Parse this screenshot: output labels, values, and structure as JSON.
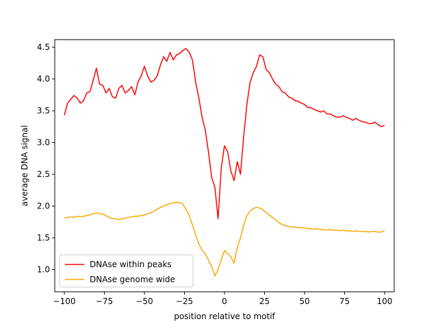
{
  "chart_data": {
    "type": "line",
    "title": "",
    "xlabel": "position relative to motif",
    "ylabel": "average DNA signal",
    "xlim": [
      -106,
      106
    ],
    "ylim": [
      0.65,
      4.62
    ],
    "xticks": [
      -100,
      -75,
      -50,
      -25,
      0,
      25,
      50,
      75,
      100
    ],
    "yticks": [
      1.0,
      1.5,
      2.0,
      2.5,
      3.0,
      3.5,
      4.0,
      4.5
    ],
    "grid": false,
    "legend_position": "lower-left",
    "series": [
      {
        "name": "DNAse within peaks",
        "color": "#ff0000",
        "x": [
          -100,
          -98,
          -96,
          -94,
          -92,
          -90,
          -88,
          -86,
          -84,
          -82,
          -80,
          -78,
          -76,
          -74,
          -72,
          -70,
          -68,
          -66,
          -64,
          -62,
          -60,
          -58,
          -56,
          -54,
          -52,
          -50,
          -48,
          -46,
          -44,
          -42,
          -40,
          -38,
          -36,
          -34,
          -32,
          -30,
          -28,
          -26,
          -24,
          -22,
          -20,
          -18,
          -16,
          -14,
          -12,
          -10,
          -8,
          -6,
          -4,
          -2,
          0,
          2,
          4,
          6,
          8,
          10,
          12,
          14,
          16,
          18,
          20,
          22,
          24,
          26,
          28,
          30,
          32,
          34,
          36,
          38,
          40,
          42,
          44,
          46,
          48,
          50,
          52,
          54,
          56,
          58,
          60,
          62,
          64,
          66,
          68,
          70,
          72,
          74,
          76,
          78,
          80,
          82,
          84,
          86,
          88,
          90,
          92,
          94,
          96,
          98,
          100
        ],
        "values": [
          3.43,
          3.62,
          3.68,
          3.74,
          3.7,
          3.62,
          3.66,
          3.78,
          3.8,
          3.98,
          4.17,
          3.92,
          3.9,
          3.78,
          3.85,
          3.72,
          3.7,
          3.85,
          3.9,
          3.78,
          3.82,
          3.88,
          3.75,
          3.95,
          4.05,
          4.2,
          4.05,
          3.95,
          3.98,
          4.05,
          4.22,
          4.35,
          4.28,
          4.42,
          4.3,
          4.38,
          4.4,
          4.45,
          4.48,
          4.42,
          4.3,
          3.95,
          3.7,
          3.4,
          3.2,
          2.85,
          2.45,
          2.3,
          1.8,
          2.6,
          2.95,
          2.85,
          2.55,
          2.4,
          2.7,
          2.5,
          3.1,
          3.6,
          3.95,
          4.1,
          4.2,
          4.38,
          4.35,
          4.15,
          4.1,
          4.0,
          3.92,
          3.88,
          3.8,
          3.78,
          3.72,
          3.7,
          3.66,
          3.65,
          3.62,
          3.6,
          3.55,
          3.55,
          3.52,
          3.5,
          3.48,
          3.5,
          3.45,
          3.45,
          3.42,
          3.4,
          3.4,
          3.42,
          3.4,
          3.38,
          3.35,
          3.38,
          3.35,
          3.33,
          3.32,
          3.3,
          3.3,
          3.32,
          3.28,
          3.25,
          3.27
        ]
      },
      {
        "name": "DNAse genome wide",
        "color": "#ffa500",
        "x": [
          -100,
          -98,
          -96,
          -94,
          -92,
          -90,
          -88,
          -86,
          -84,
          -82,
          -80,
          -78,
          -76,
          -74,
          -72,
          -70,
          -68,
          -66,
          -64,
          -62,
          -60,
          -58,
          -56,
          -54,
          -52,
          -50,
          -48,
          -46,
          -44,
          -42,
          -40,
          -38,
          -36,
          -34,
          -32,
          -30,
          -28,
          -26,
          -24,
          -22,
          -20,
          -18,
          -16,
          -14,
          -12,
          -10,
          -8,
          -6,
          -4,
          -2,
          0,
          2,
          4,
          6,
          8,
          10,
          12,
          14,
          16,
          18,
          20,
          22,
          24,
          26,
          28,
          30,
          32,
          34,
          36,
          38,
          40,
          42,
          44,
          46,
          48,
          50,
          52,
          54,
          56,
          58,
          60,
          62,
          64,
          66,
          68,
          70,
          72,
          74,
          76,
          78,
          80,
          82,
          84,
          86,
          88,
          90,
          92,
          94,
          96,
          98,
          100
        ],
        "values": [
          1.81,
          1.82,
          1.83,
          1.82,
          1.84,
          1.83,
          1.84,
          1.85,
          1.86,
          1.88,
          1.89,
          1.88,
          1.87,
          1.85,
          1.82,
          1.8,
          1.8,
          1.79,
          1.8,
          1.81,
          1.82,
          1.83,
          1.84,
          1.84,
          1.85,
          1.86,
          1.88,
          1.89,
          1.92,
          1.95,
          1.98,
          2.0,
          2.02,
          2.04,
          2.05,
          2.06,
          2.05,
          2.03,
          1.95,
          1.85,
          1.7,
          1.55,
          1.4,
          1.3,
          1.25,
          1.15,
          1.05,
          0.9,
          1.0,
          1.15,
          1.3,
          1.25,
          1.2,
          1.1,
          1.35,
          1.5,
          1.7,
          1.85,
          1.92,
          1.96,
          1.98,
          1.97,
          1.94,
          1.9,
          1.86,
          1.82,
          1.78,
          1.74,
          1.71,
          1.69,
          1.68,
          1.67,
          1.67,
          1.66,
          1.66,
          1.65,
          1.65,
          1.64,
          1.64,
          1.64,
          1.63,
          1.63,
          1.62,
          1.63,
          1.62,
          1.62,
          1.61,
          1.62,
          1.61,
          1.61,
          1.6,
          1.61,
          1.6,
          1.6,
          1.6,
          1.59,
          1.6,
          1.6,
          1.59,
          1.59,
          1.62
        ]
      }
    ]
  }
}
